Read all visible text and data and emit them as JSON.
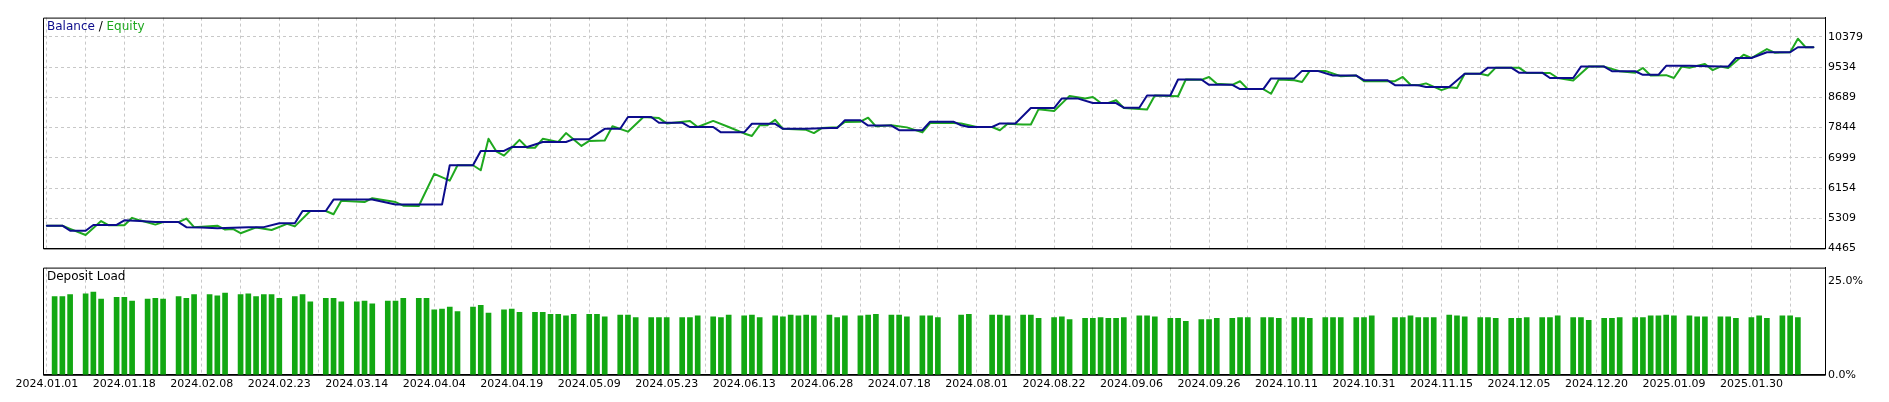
{
  "chart_data": [
    {
      "type": "line",
      "legend": "top left",
      "annotations": [
        "/"
      ],
      "tick_labels": "y",
      "grid": true,
      "marker": "none",
      "ylim": [
        4465,
        10920
      ],
      "yticks": [
        4465,
        5309,
        6154,
        6999,
        7844,
        8689,
        9534,
        10379
      ],
      "categories": [
        "2024.01.01",
        null,
        null,
        null,
        null,
        null,
        null,
        null,
        null,
        null,
        "2024.01.18",
        null,
        null,
        null,
        null,
        null,
        null,
        null,
        null,
        null,
        "2024.02.08",
        null,
        null,
        null,
        null,
        null,
        null,
        null,
        null,
        null,
        "2024.02.23",
        null,
        null,
        null,
        null,
        null,
        null,
        null,
        null,
        null,
        "2024.03.14",
        null,
        null,
        null,
        null,
        null,
        null,
        null,
        null,
        null,
        "2024.04.04",
        null,
        null,
        null,
        null,
        null,
        null,
        null,
        null,
        null,
        "2024.04.19",
        null,
        null,
        null,
        null,
        null,
        null,
        null,
        null,
        null,
        "2024.05.09",
        null,
        null,
        null,
        null,
        null,
        null,
        null,
        null,
        null,
        "2024.05.23",
        null,
        null,
        null,
        null,
        null,
        null,
        null,
        null,
        null,
        "2024.06.13",
        null,
        null,
        null,
        null,
        null,
        null,
        null,
        null,
        null,
        "2024.06.28",
        null,
        null,
        null,
        null,
        null,
        null,
        null,
        null,
        null,
        "2024.07.18",
        null,
        null,
        null,
        null,
        null,
        null,
        null,
        null,
        null,
        "2024.08.01",
        null,
        null,
        null,
        null,
        null,
        null,
        null,
        null,
        null,
        "2024.08.22",
        null,
        null,
        null,
        null,
        null,
        null,
        null,
        null,
        null,
        "2024.09.06",
        null,
        null,
        null,
        null,
        null,
        null,
        null,
        null,
        null,
        "2024.09.26",
        null,
        null,
        null,
        null,
        null,
        null,
        null,
        null,
        null,
        "2024.10.11",
        null,
        null,
        null,
        null,
        null,
        null,
        null,
        null,
        null,
        "2024.10.31",
        null,
        null,
        null,
        null,
        null,
        null,
        null,
        null,
        null,
        "2024.11.15",
        null,
        null,
        null,
        null,
        null,
        null,
        null,
        null,
        null,
        "2024.12.05",
        null,
        null,
        null,
        null,
        null,
        null,
        null,
        null,
        null,
        "2024.12.20",
        null,
        null,
        null,
        null,
        null,
        null,
        null,
        null,
        null,
        "2025.01.09",
        null,
        null,
        null,
        null,
        null,
        null,
        null,
        null,
        null,
        "2025.01.30",
        null,
        null,
        null,
        null,
        null,
        null,
        null,
        null,
        null
      ],
      "series": [
        {
          "name": "Equity",
          "color": "#1fa81f",
          "values": [
            5100,
            null,
            5100,
            5010,
            null,
            4840,
            null,
            5230,
            5110,
            null,
            5110,
            5320,
            5250,
            null,
            5130,
            5200,
            null,
            5200,
            5300,
            5060,
            null,
            null,
            5100,
            4990,
            5010,
            4890,
            null,
            5050,
            null,
            4980,
            null,
            5150,
            5080,
            null,
            5510,
            null,
            5510,
            5420,
            5800,
            null,
            null,
            5760,
            5870,
            null,
            null,
            5760,
            5660,
            null,
            5650,
            null,
            6550,
            null,
            6360,
            6790,
            null,
            6790,
            6650,
            7530,
            7180,
            7060,
            null,
            7500,
            7280,
            7280,
            7530,
            null,
            7440,
            7690,
            null,
            7330,
            7470,
            null,
            7480,
            7880,
            null,
            7730,
            null,
            8140,
            null,
            8110,
            7960,
            null,
            null,
            8030,
            7860,
            null,
            8030,
            null,
            7860,
            null,
            7680,
            7610,
            7910,
            7910,
            8060,
            7810,
            null,
            null,
            7780,
            7690,
            7830,
            null,
            7850,
            8000,
            null,
            8010,
            8120,
            7880,
            null,
            7910,
            null,
            7850,
            null,
            7710,
            7970,
            null,
            null,
            7970,
            7960,
            null,
            7860,
            null,
            7860,
            7770,
            7950,
            null,
            7930,
            7930,
            8360,
            null,
            8310,
            null,
            8730,
            null,
            8660,
            8700,
            8540,
            8530,
            8610,
            8390,
            null,
            null,
            8350,
            8740,
            null,
            null,
            8720,
            9190,
            null,
            9180,
            9260,
            9070,
            null,
            9040,
            9140,
            8920,
            null,
            8920,
            8790,
            9190,
            null,
            9170,
            9120,
            9430,
            null,
            9430,
            null,
            9280,
            null,
            9300,
            9140,
            null,
            null,
            null,
            9140,
            9260,
            9040,
            9030,
            9080,
            null,
            8890,
            8970,
            8950,
            9350,
            null,
            9350,
            9300,
            9520,
            null,
            null,
            9520,
            9370,
            null,
            null,
            9370,
            9230,
            null,
            9160,
            null,
            9550,
            null,
            9550,
            null,
            9420,
            null,
            9380,
            9510,
            9300,
            null,
            9310,
            9230,
            9550,
            9520,
            null,
            9620,
            9450,
            9550,
            9510,
            null,
            9880,
            9790,
            null,
            10040,
            9940,
            null,
            9950,
            10330,
            10090,
            10090,
            null
          ]
        },
        {
          "name": "Balance",
          "color": "#0c0c8c",
          "values": [
            5100,
            null,
            5100,
            4960,
            null,
            4960,
            5120,
            null,
            null,
            5120,
            5250,
            null,
            5230,
            null,
            5200,
            null,
            null,
            5200,
            5060,
            null,
            5050,
            null,
            5030,
            null,
            null,
            null,
            5060,
            null,
            5060,
            null,
            5170,
            null,
            5170,
            5510,
            null,
            null,
            5510,
            5830,
            null,
            null,
            null,
            null,
            5830,
            null,
            null,
            5690,
            null,
            null,
            null,
            null,
            null,
            5690,
            6790,
            null,
            null,
            6790,
            7190,
            null,
            null,
            7190,
            7300,
            null,
            7300,
            null,
            7440,
            null,
            null,
            7440,
            7520,
            null,
            7520,
            null,
            7810,
            null,
            7810,
            8140,
            null,
            null,
            8140,
            7980,
            null,
            null,
            7980,
            7860,
            null,
            null,
            7860,
            7710,
            null,
            null,
            7710,
            7950,
            null,
            null,
            7950,
            7810,
            null,
            null,
            7810,
            null,
            null,
            7830,
            7830,
            8050,
            null,
            8050,
            7900,
            null,
            null,
            7900,
            7770,
            null,
            null,
            7770,
            8010,
            null,
            null,
            8010,
            7910,
            7860,
            null,
            null,
            7860,
            7960,
            null,
            7960,
            null,
            8390,
            null,
            null,
            8390,
            8660,
            null,
            8660,
            null,
            8530,
            null,
            null,
            8530,
            8400,
            null,
            8400,
            8740,
            null,
            null,
            8740,
            9190,
            null,
            null,
            9190,
            9040,
            null,
            null,
            9040,
            8920,
            null,
            null,
            8920,
            9220,
            null,
            null,
            9220,
            9430,
            null,
            9430,
            null,
            9300,
            null,
            null,
            9300,
            9170,
            null,
            null,
            9170,
            9030,
            null,
            null,
            9030,
            8980,
            null,
            null,
            8980,
            null,
            9350,
            null,
            9350,
            9520,
            null,
            null,
            9520,
            9380,
            null,
            null,
            9380,
            9230,
            null,
            null,
            9230,
            9550,
            null,
            null,
            9550,
            9420,
            null,
            null,
            9420,
            9320,
            null,
            9320,
            9570,
            null,
            null,
            9570,
            null,
            null,
            null,
            9550,
            9550,
            9790,
            null,
            9790,
            null,
            9950,
            null,
            null,
            9950,
            10090,
            null,
            10090,
            null
          ]
        }
      ]
    },
    {
      "type": "bar",
      "title": "Deposit Load",
      "grid": "x",
      "color": "#12a812",
      "ylim": [
        0,
        28.5
      ],
      "yticks": [
        {
          "value": 0,
          "label": "0.0%"
        },
        {
          "value": 25,
          "label": "25.0%"
        }
      ],
      "categories": [
        "2024.01.01",
        null,
        null,
        null,
        null,
        null,
        null,
        null,
        null,
        null,
        "2024.01.18",
        null,
        null,
        null,
        null,
        null,
        null,
        null,
        null,
        null,
        "2024.02.08",
        null,
        null,
        null,
        null,
        null,
        null,
        null,
        null,
        null,
        "2024.02.23",
        null,
        null,
        null,
        null,
        null,
        null,
        null,
        null,
        null,
        "2024.03.14",
        null,
        null,
        null,
        null,
        null,
        null,
        null,
        null,
        null,
        "2024.04.04",
        null,
        null,
        null,
        null,
        null,
        null,
        null,
        null,
        null,
        "2024.04.19",
        null,
        null,
        null,
        null,
        null,
        null,
        null,
        null,
        null,
        "2024.05.09",
        null,
        null,
        null,
        null,
        null,
        null,
        null,
        null,
        null,
        "2024.05.23",
        null,
        null,
        null,
        null,
        null,
        null,
        null,
        null,
        null,
        "2024.06.13",
        null,
        null,
        null,
        null,
        null,
        null,
        null,
        null,
        null,
        "2024.06.28",
        null,
        null,
        null,
        null,
        null,
        null,
        null,
        null,
        null,
        "2024.07.18",
        null,
        null,
        null,
        null,
        null,
        null,
        null,
        null,
        null,
        "2024.08.01",
        null,
        null,
        null,
        null,
        null,
        null,
        null,
        null,
        null,
        "2024.08.22",
        null,
        null,
        null,
        null,
        null,
        null,
        null,
        null,
        null,
        "2024.09.06",
        null,
        null,
        null,
        null,
        null,
        null,
        null,
        null,
        null,
        "2024.09.26",
        null,
        null,
        null,
        null,
        null,
        null,
        null,
        null,
        null,
        "2024.10.11",
        null,
        null,
        null,
        null,
        null,
        null,
        null,
        null,
        null,
        "2024.10.31",
        null,
        null,
        null,
        null,
        null,
        null,
        null,
        null,
        null,
        "2024.11.15",
        null,
        null,
        null,
        null,
        null,
        null,
        null,
        null,
        null,
        "2024.12.05",
        null,
        null,
        null,
        null,
        null,
        null,
        null,
        null,
        null,
        "2024.12.20",
        null,
        null,
        null,
        null,
        null,
        null,
        null,
        null,
        null,
        "2025.01.09",
        null,
        null,
        null,
        null,
        null,
        null,
        null,
        null,
        null,
        "2025.01.30",
        null,
        null,
        null,
        null,
        null,
        null,
        null,
        null,
        null
      ],
      "values": [
        null,
        20.8,
        20.8,
        21.3,
        null,
        21.5,
        22.0,
        20.1,
        null,
        20.6,
        20.6,
        19.6,
        null,
        20.1,
        20.3,
        20.1,
        null,
        20.8,
        20.3,
        21.3,
        null,
        21.3,
        21.0,
        21.7,
        null,
        21.3,
        21.5,
        20.8,
        21.3,
        21.3,
        20.3,
        null,
        20.8,
        21.3,
        19.4,
        null,
        20.3,
        20.3,
        19.4,
        null,
        19.4,
        19.6,
        18.9,
        null,
        19.6,
        19.6,
        20.3,
        null,
        20.3,
        20.3,
        17.3,
        17.5,
        18.0,
        16.8,
        null,
        18.0,
        18.5,
        16.4,
        null,
        17.3,
        17.5,
        16.6,
        null,
        16.6,
        16.6,
        16.1,
        16.1,
        15.7,
        16.1,
        null,
        16.1,
        16.1,
        15.4,
        null,
        15.9,
        15.9,
        15.2,
        null,
        15.2,
        15.2,
        15.2,
        null,
        15.2,
        15.2,
        15.7,
        null,
        15.4,
        15.2,
        15.9,
        null,
        15.7,
        15.9,
        15.2,
        null,
        15.7,
        15.4,
        15.9,
        15.7,
        15.9,
        15.7,
        null,
        15.9,
        15.2,
        15.7,
        null,
        15.7,
        15.9,
        16.1,
        null,
        15.9,
        15.9,
        15.4,
        null,
        15.7,
        15.7,
        15.2,
        null,
        null,
        15.9,
        16.1,
        null,
        null,
        15.9,
        15.9,
        15.7,
        null,
        15.9,
        15.9,
        15.0,
        null,
        15.2,
        15.4,
        14.7,
        null,
        15.0,
        15.0,
        15.2,
        15.0,
        15.0,
        15.2,
        null,
        15.7,
        15.7,
        15.4,
        null,
        15.0,
        15.0,
        14.2,
        null,
        14.7,
        14.7,
        15.0,
        null,
        15.0,
        15.2,
        15.2,
        null,
        15.2,
        15.2,
        15.0,
        null,
        15.2,
        15.2,
        15.0,
        null,
        15.2,
        15.2,
        15.2,
        null,
        15.2,
        15.2,
        15.7,
        null,
        null,
        15.2,
        15.2,
        15.7,
        15.2,
        15.2,
        15.2,
        null,
        15.9,
        15.7,
        15.4,
        null,
        15.2,
        15.2,
        15.0,
        null,
        15.0,
        15.0,
        15.2,
        null,
        15.2,
        15.2,
        15.7,
        null,
        15.2,
        15.2,
        14.5,
        null,
        15.0,
        15.0,
        15.2,
        null,
        15.2,
        15.2,
        15.7,
        15.7,
        15.9,
        15.7,
        null,
        15.7,
        15.4,
        15.4,
        null,
        15.4,
        15.4,
        15.0,
        null,
        15.2,
        15.7,
        15.0,
        null,
        15.7,
        15.7,
        15.2,
        null,
        null,
        null
      ]
    }
  ]
}
